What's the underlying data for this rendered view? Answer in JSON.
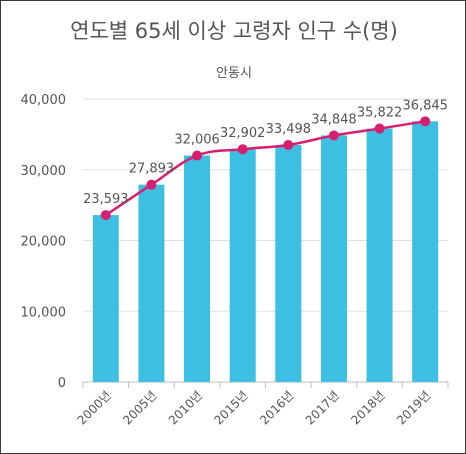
{
  "chart_data": {
    "type": "bar",
    "title": "연도별 65세 이상 고령자 인구 수(명)",
    "subtitle": "안동시",
    "categories": [
      "2000년",
      "2005년",
      "2010년",
      "2015년",
      "2016년",
      "2017년",
      "2018년",
      "2019년"
    ],
    "series": [
      {
        "type": "bar",
        "values": [
          23593,
          27893,
          32006,
          32902,
          33498,
          34848,
          35822,
          36845
        ],
        "color": "#3dbfe3"
      },
      {
        "type": "line",
        "values": [
          23593,
          27893,
          32006,
          32902,
          33498,
          34848,
          35822,
          36845
        ],
        "color": "#d6206f"
      }
    ],
    "data_labels": [
      "23,593",
      "27,893",
      "32,006",
      "32,902",
      "33,498",
      "34,848",
      "35,822",
      "36,845"
    ],
    "y_ticks": [
      0,
      10000,
      20000,
      30000,
      40000
    ],
    "y_tick_labels": [
      "0",
      "10,000",
      "20,000",
      "30,000",
      "40,000"
    ],
    "ylim": [
      0,
      40000
    ],
    "grid": true,
    "legend": "none"
  }
}
